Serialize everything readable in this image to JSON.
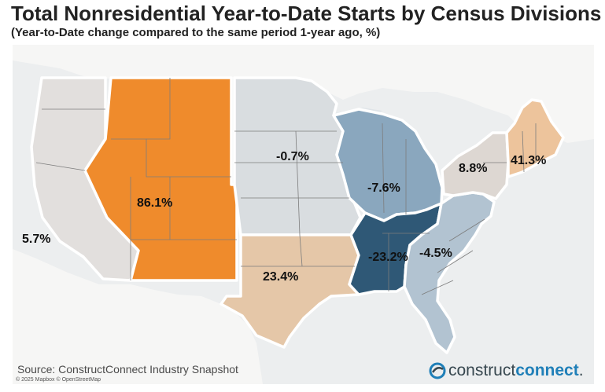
{
  "header": {
    "title": "Total Nonresidential Year-to-Date Starts by Census Divisions",
    "subtitle": "(Year-to-Date change compared to the same period 1-year ago, %)"
  },
  "divisions": [
    {
      "id": "pacific",
      "value": "5.7%",
      "color": "#e2dfdd"
    },
    {
      "id": "mountain",
      "value": "86.1%",
      "color": "#ef8b2c"
    },
    {
      "id": "west-north-central",
      "value": "-0.7%",
      "color": "#d9dde0"
    },
    {
      "id": "west-south-central",
      "value": "23.4%",
      "color": "#e5c7a8"
    },
    {
      "id": "east-north-central",
      "value": "-7.6%",
      "color": "#8aa7be"
    },
    {
      "id": "east-south-central",
      "value": "-23.2%",
      "color": "#2f5876"
    },
    {
      "id": "south-atlantic",
      "value": "-4.5%",
      "color": "#b2c3d1"
    },
    {
      "id": "middle-atlantic",
      "value": "8.8%",
      "color": "#ddd7d2"
    },
    {
      "id": "new-england",
      "value": "41.3%",
      "color": "#edc49c"
    }
  ],
  "colors": {
    "ocean": "#eceeef",
    "land_outside": "#f6f6f5",
    "state_border": "#7d7d7d",
    "division_border": "#ffffff"
  },
  "footer": {
    "source": "Source: ConstructConnect Industry Snapshot",
    "attribution": "© 2025 Mapbox © OpenStreetMap",
    "brand_part1": "construct",
    "brand_part2": "connect",
    "brand_suffix": "."
  },
  "icons": {
    "logo": "swoosh-logo-icon"
  }
}
